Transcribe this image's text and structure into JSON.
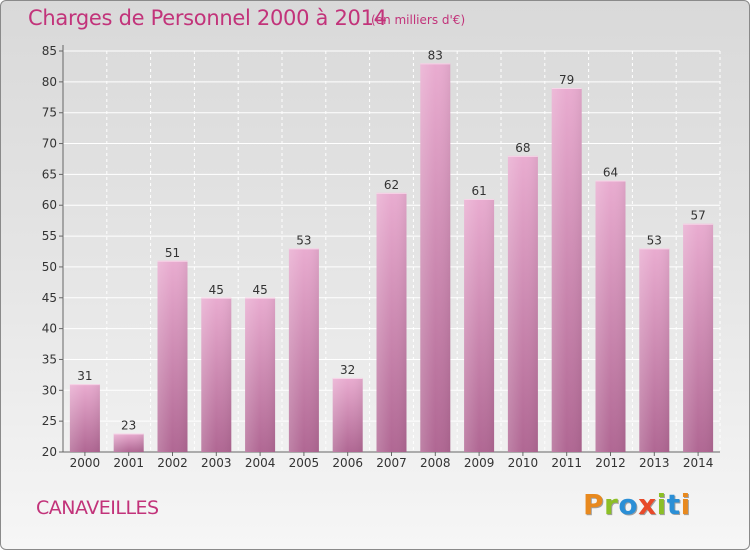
{
  "header": {
    "title": "Charges de Personnel 2000 à 2014",
    "subtitle": "(en milliers d'€)"
  },
  "footer": {
    "commune": "CANAVEILLES",
    "logo": "Proxiti"
  },
  "colors": {
    "accent": "#c2337a",
    "bar_top": "#e9acd0",
    "bar_bottom": "#b06793"
  },
  "chart_data": {
    "type": "bar",
    "title": "Charges de Personnel 2000 à 2014",
    "subtitle": "(en milliers d'€)",
    "xlabel": "",
    "ylabel": "",
    "categories": [
      "2000",
      "2001",
      "2002",
      "2003",
      "2004",
      "2005",
      "2006",
      "2007",
      "2008",
      "2009",
      "2010",
      "2011",
      "2012",
      "2013",
      "2014"
    ],
    "values": [
      31,
      23,
      51,
      45,
      45,
      53,
      32,
      62,
      83,
      61,
      68,
      79,
      64,
      53,
      57
    ],
    "ylim": [
      20,
      85
    ],
    "yticks": [
      20,
      25,
      30,
      35,
      40,
      45,
      50,
      55,
      60,
      65,
      70,
      75,
      80,
      85
    ],
    "grid": true,
    "data_labels": true
  }
}
